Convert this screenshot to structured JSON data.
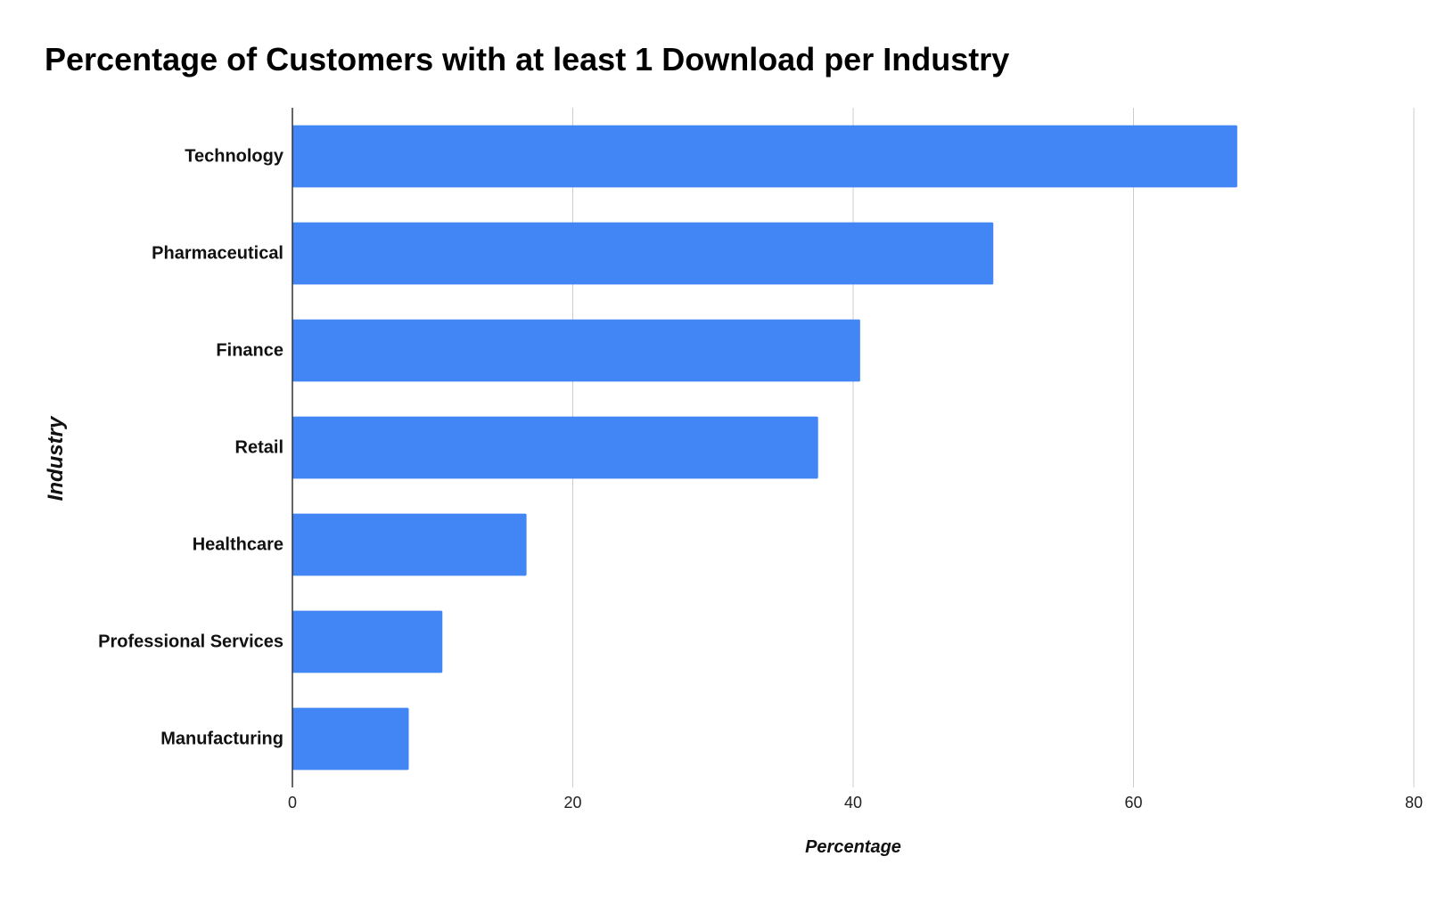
{
  "chart_data": {
    "type": "bar",
    "orientation": "horizontal",
    "title": "Percentage of Customers with at least 1 Download per Industry",
    "xlabel": "Percentage",
    "ylabel": "Industry",
    "categories": [
      "Technology",
      "Pharmaceutical",
      "Finance",
      "Retail",
      "Healthcare",
      "Professional Services",
      "Manufacturing"
    ],
    "values": [
      67.4,
      50.0,
      40.5,
      37.5,
      16.7,
      10.7,
      8.3
    ],
    "xlim": [
      0,
      80
    ],
    "xticks": [
      "0",
      "20",
      "40",
      "60",
      "80"
    ],
    "grid": true,
    "bar_color": "#4285f4",
    "gridline_color": "#cccccc",
    "axis_color": "#333333"
  }
}
